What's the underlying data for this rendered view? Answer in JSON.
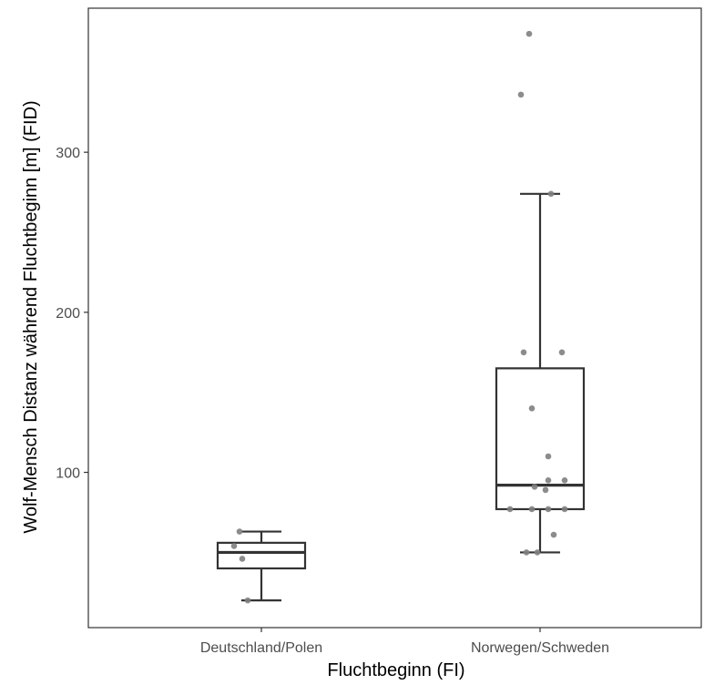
{
  "chart_data": {
    "type": "boxplot",
    "xlabel": "Fluchtbeginn (FI)",
    "ylabel": "Wolf-Mensch Distanz während Fluchtbeginn [m] (FID)",
    "categories": [
      "Deutschland/Polen",
      "Norwegen/Schweden"
    ],
    "ylim": [
      3,
      390
    ],
    "yticks": [
      100,
      200,
      300
    ],
    "grid": false,
    "legend": "none",
    "boxes": [
      {
        "category": "Deutschland/Polen",
        "whisker_low": 20,
        "q1": 40,
        "median": 50,
        "q3": 56,
        "whisker_high": 63
      },
      {
        "category": "Norwegen/Schweden",
        "whisker_low": 50,
        "q1": 77,
        "median": 92,
        "q3": 165,
        "whisker_high": 274
      }
    ],
    "points": [
      {
        "category": "Deutschland/Polen",
        "jitter": -0.08,
        "y": 63
      },
      {
        "category": "Deutschland/Polen",
        "jitter": -0.1,
        "y": 54
      },
      {
        "category": "Deutschland/Polen",
        "jitter": -0.07,
        "y": 46
      },
      {
        "category": "Deutschland/Polen",
        "jitter": -0.05,
        "y": 20
      },
      {
        "category": "Norwegen/Schweden",
        "jitter": -0.04,
        "y": 374
      },
      {
        "category": "Norwegen/Schweden",
        "jitter": -0.07,
        "y": 336
      },
      {
        "category": "Norwegen/Schweden",
        "jitter": 0.04,
        "y": 274
      },
      {
        "category": "Norwegen/Schweden",
        "jitter": -0.06,
        "y": 175
      },
      {
        "category": "Norwegen/Schweden",
        "jitter": 0.08,
        "y": 175
      },
      {
        "category": "Norwegen/Schweden",
        "jitter": -0.03,
        "y": 140
      },
      {
        "category": "Norwegen/Schweden",
        "jitter": 0.03,
        "y": 110
      },
      {
        "category": "Norwegen/Schweden",
        "jitter": 0.03,
        "y": 95
      },
      {
        "category": "Norwegen/Schweden",
        "jitter": 0.09,
        "y": 95
      },
      {
        "category": "Norwegen/Schweden",
        "jitter": -0.02,
        "y": 91
      },
      {
        "category": "Norwegen/Schweden",
        "jitter": 0.02,
        "y": 89
      },
      {
        "category": "Norwegen/Schweden",
        "jitter": -0.11,
        "y": 77
      },
      {
        "category": "Norwegen/Schweden",
        "jitter": -0.03,
        "y": 77
      },
      {
        "category": "Norwegen/Schweden",
        "jitter": 0.03,
        "y": 77
      },
      {
        "category": "Norwegen/Schweden",
        "jitter": 0.09,
        "y": 77
      },
      {
        "category": "Norwegen/Schweden",
        "jitter": 0.05,
        "y": 61
      },
      {
        "category": "Norwegen/Schweden",
        "jitter": -0.01,
        "y": 50
      },
      {
        "category": "Norwegen/Schweden",
        "jitter": -0.05,
        "y": 50
      }
    ],
    "colors": {
      "box": "#333333",
      "point": "#808080",
      "axis": "#333333",
      "tick_label": "#4d4d4d"
    }
  }
}
